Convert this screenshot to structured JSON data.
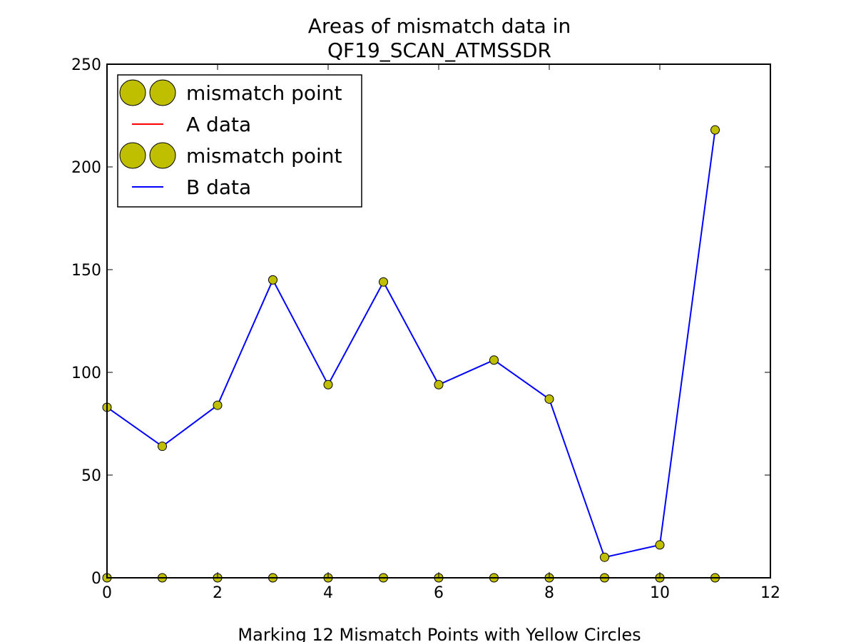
{
  "chart_data": {
    "type": "line",
    "title": [
      "Areas of mismatch data in",
      "QF19_SCAN_ATMSSDR"
    ],
    "xlabel": "Marking 12 Mismatch Points with Yellow Circles",
    "ylabel": "",
    "xlim": [
      0,
      12
    ],
    "ylim": [
      0,
      250
    ],
    "x_ticks": [
      0,
      2,
      4,
      6,
      8,
      10,
      12
    ],
    "y_ticks": [
      0,
      50,
      100,
      150,
      200,
      250
    ],
    "grid": false,
    "legend_position": "top-left",
    "legend": [
      {
        "label": "mismatch point",
        "kind": "marker",
        "color": "#bfbf00"
      },
      {
        "label": "A data",
        "kind": "line",
        "color": "#ff0000"
      },
      {
        "label": "mismatch point",
        "kind": "marker",
        "color": "#bfbf00"
      },
      {
        "label": "B data",
        "kind": "line",
        "color": "#0000ff"
      }
    ],
    "series": [
      {
        "name": "A data",
        "color": "#ff0000",
        "x": [
          0,
          1,
          2,
          3,
          4,
          5,
          6,
          7,
          8,
          9,
          10,
          11
        ],
        "values": [
          0,
          0,
          0,
          0,
          0,
          0,
          0,
          0,
          0,
          0,
          0,
          0
        ]
      },
      {
        "name": "B data",
        "color": "#0000ff",
        "x": [
          0,
          1,
          2,
          3,
          4,
          5,
          6,
          7,
          8,
          9,
          10,
          11
        ],
        "values": [
          83,
          64,
          84,
          145,
          94,
          144,
          94,
          106,
          87,
          10,
          16,
          218
        ]
      }
    ],
    "mismatch_marker_color": "#bfbf00"
  }
}
